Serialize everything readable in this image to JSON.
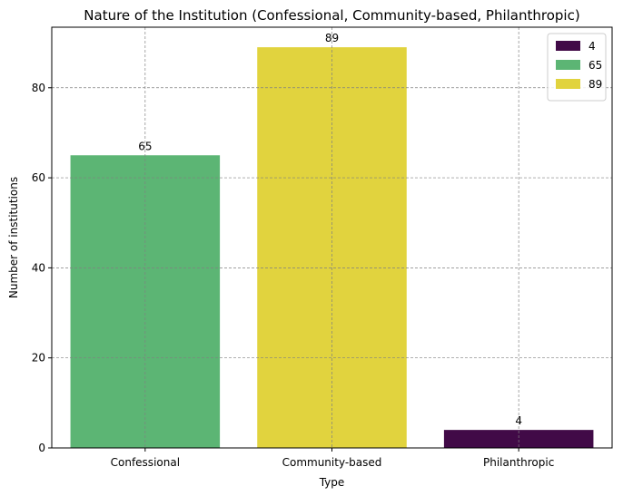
{
  "chart_data": {
    "type": "bar",
    "title": "Nature of the Institution (Confessional, Community-based, Philanthropic)",
    "xlabel": "Type",
    "ylabel": "Number of institutions",
    "categories": [
      "Confessional",
      "Community-based",
      "Philanthropic"
    ],
    "values": [
      65,
      89,
      4
    ],
    "bar_colors": [
      "#5cb574",
      "#e1d33e",
      "#410a47"
    ],
    "bar_labels": [
      "65",
      "89",
      "4"
    ],
    "ylim": [
      0,
      93.45
    ],
    "yticks": [
      0,
      20,
      40,
      60,
      80
    ],
    "grid": true,
    "legend": {
      "placement": "top-right",
      "entries": [
        {
          "label": "4",
          "color": "#410a47"
        },
        {
          "label": "65",
          "color": "#5cb574"
        },
        {
          "label": "89",
          "color": "#e1d33e"
        }
      ]
    }
  }
}
